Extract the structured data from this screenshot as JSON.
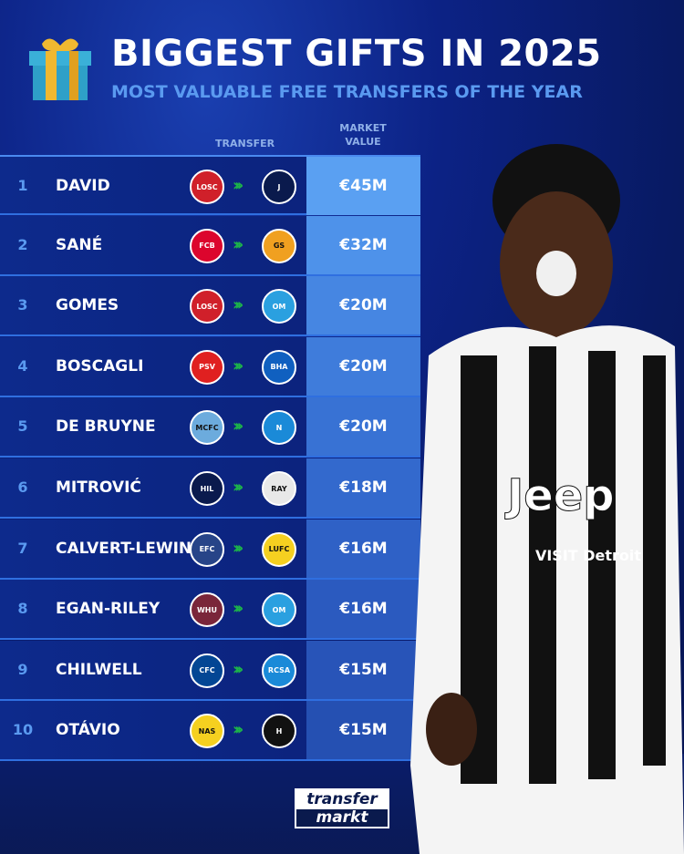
{
  "header": {
    "title": "BIGGEST GIFTS IN 2025",
    "subtitle": "MOST VALUABLE FREE TRANSFERS OF THE YEAR",
    "icon": "gift-icon"
  },
  "columns": {
    "transfer": "TRANSFER",
    "market_value_line1": "MARKET",
    "market_value_line2": "VALUE"
  },
  "rows": [
    {
      "rank": "1",
      "name": "DAVID",
      "from": "LOSC",
      "from_color": "#d0202a",
      "to": "J",
      "to_color": "#0a1a4d",
      "value": "€45M",
      "value_bg": "#5aa0f2"
    },
    {
      "rank": "2",
      "name": "SANÉ",
      "from": "FCB",
      "from_color": "#dc052d",
      "to": "GS",
      "to_color": "#f0a020",
      "value": "€32M",
      "value_bg": "#4e92ea"
    },
    {
      "rank": "3",
      "name": "GOMES",
      "from": "LOSC",
      "from_color": "#d0202a",
      "to": "OM",
      "to_color": "#2aa0e0",
      "value": "€20M",
      "value_bg": "#4686e2"
    },
    {
      "rank": "4",
      "name": "BOSCAGLI",
      "from": "PSV",
      "from_color": "#e02020",
      "to": "BHA",
      "to_color": "#1060c0",
      "value": "€20M",
      "value_bg": "#3f7cdb"
    },
    {
      "rank": "5",
      "name": "DE BRUYNE",
      "from": "MCFC",
      "from_color": "#6cabdd",
      "to": "N",
      "to_color": "#1a8ad8",
      "value": "€20M",
      "value_bg": "#3872d4"
    },
    {
      "rank": "6",
      "name": "MITROVIĆ",
      "from": "HIL",
      "from_color": "#0a1a4d",
      "to": "RAY",
      "to_color": "#e8e8e8",
      "value": "€18M",
      "value_bg": "#3369cd"
    },
    {
      "rank": "7",
      "name": "CALVERT-LEWIN",
      "from": "EFC",
      "from_color": "#274488",
      "to": "LUFC",
      "to_color": "#f5d020",
      "value": "€16M",
      "value_bg": "#2f61c6"
    },
    {
      "rank": "8",
      "name": "EGAN-RILEY",
      "from": "WHU",
      "from_color": "#7a263a",
      "to": "OM",
      "to_color": "#2aa0e0",
      "value": "€16M",
      "value_bg": "#2b5abf"
    },
    {
      "rank": "9",
      "name": "CHILWELL",
      "from": "CFC",
      "from_color": "#034694",
      "to": "RCSA",
      "to_color": "#1a8ad8",
      "value": "€15M",
      "value_bg": "#2854b8"
    },
    {
      "rank": "10",
      "name": "OTÁVIO",
      "from": "NAS",
      "from_color": "#f5d020",
      "to": "H",
      "to_color": "#111",
      "value": "€15M",
      "value_bg": "#2550b2"
    }
  ],
  "branding": {
    "line1": "transfer",
    "line2": "markt"
  },
  "jersey": {
    "sponsor": "Jeep",
    "sleeve_text": "VISIT Detroit"
  }
}
